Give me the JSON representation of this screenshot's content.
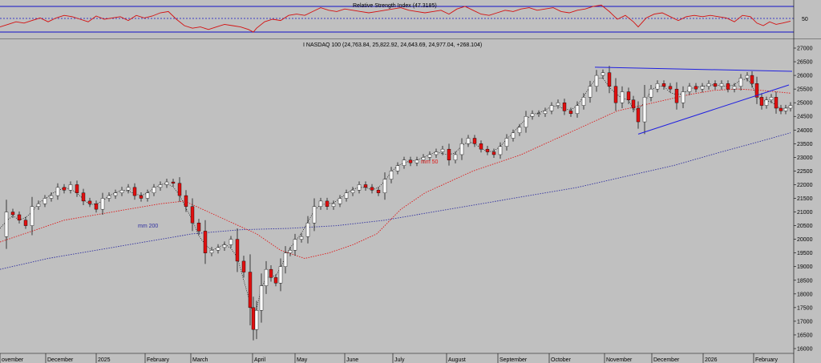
{
  "rsi": {
    "title": "Relative Strength Index (47.3185)",
    "level_label": "50",
    "colors": {
      "line": "#d41010",
      "band": "#1010c8",
      "mid": "#1010c8"
    }
  },
  "main": {
    "title": "I NASDAQ 100 (24,763.84, 25,822.92, 24,643.69, 24,977.04, +268.104)",
    "ma50_label": "mm 50",
    "ma200_label": "mm 200",
    "colors": {
      "ma50": "#e01818",
      "ma200": "#3030a0",
      "trend": "#2020e0",
      "bull": "#ffffff",
      "bear": "#e01010",
      "wick": "#000000",
      "dotted": "#000000"
    }
  },
  "chart_data": {
    "type": "candlestick",
    "title": "I NASDAQ 100 (24,763.84, 25,822.92, 24,643.69, 24,977.04, +268.104)",
    "ylim": [
      16000,
      27000
    ],
    "yticks": [
      16000,
      16500,
      17000,
      17500,
      18000,
      18500,
      19000,
      19500,
      20000,
      20500,
      21000,
      21500,
      22000,
      22500,
      23000,
      23500,
      24000,
      24500,
      25000,
      25500,
      26000,
      26500,
      27000
    ],
    "xticks": [
      "ovember",
      "December",
      "2025",
      "February",
      "March",
      "April",
      "May",
      "June",
      "July",
      "August",
      "September",
      "October",
      "November",
      "December",
      "2026",
      "February"
    ],
    "close_path": [
      [
        0,
        20100
      ],
      [
        8,
        21000
      ],
      [
        16,
        20900
      ],
      [
        24,
        20700
      ],
      [
        32,
        20500
      ],
      [
        40,
        21200
      ],
      [
        48,
        21300
      ],
      [
        56,
        21500
      ],
      [
        64,
        21600
      ],
      [
        72,
        21900
      ],
      [
        80,
        21800
      ],
      [
        88,
        22000
      ],
      [
        96,
        21700
      ],
      [
        104,
        21400
      ],
      [
        112,
        21300
      ],
      [
        120,
        21100
      ],
      [
        128,
        21500
      ],
      [
        136,
        21600
      ],
      [
        144,
        21700
      ],
      [
        152,
        21800
      ],
      [
        160,
        21900
      ],
      [
        168,
        21600
      ],
      [
        176,
        21500
      ],
      [
        184,
        21700
      ],
      [
        192,
        21900
      ],
      [
        200,
        22000
      ],
      [
        208,
        22100
      ],
      [
        216,
        22050
      ],
      [
        224,
        21600
      ],
      [
        232,
        21200
      ],
      [
        240,
        20600
      ],
      [
        248,
        20300
      ],
      [
        256,
        19500
      ],
      [
        264,
        19600
      ],
      [
        272,
        19700
      ],
      [
        280,
        19800
      ],
      [
        288,
        20000
      ],
      [
        296,
        19200
      ],
      [
        304,
        18800
      ],
      [
        312,
        17500
      ],
      [
        316,
        16700
      ],
      [
        320,
        17400
      ],
      [
        326,
        18300
      ],
      [
        332,
        18900
      ],
      [
        338,
        18600
      ],
      [
        344,
        18400
      ],
      [
        350,
        19000
      ],
      [
        356,
        19500
      ],
      [
        362,
        19600
      ],
      [
        368,
        20000
      ],
      [
        376,
        20100
      ],
      [
        384,
        20600
      ],
      [
        392,
        21200
      ],
      [
        400,
        21400
      ],
      [
        408,
        21200
      ],
      [
        416,
        21300
      ],
      [
        424,
        21500
      ],
      [
        432,
        21700
      ],
      [
        440,
        21800
      ],
      [
        448,
        22000
      ],
      [
        456,
        21900
      ],
      [
        464,
        21800
      ],
      [
        472,
        21700
      ],
      [
        480,
        22200
      ],
      [
        488,
        22500
      ],
      [
        496,
        22700
      ],
      [
        504,
        22900
      ],
      [
        512,
        22800
      ],
      [
        520,
        22900
      ],
      [
        528,
        23000
      ],
      [
        536,
        23100
      ],
      [
        544,
        23200
      ],
      [
        552,
        23300
      ],
      [
        560,
        22900
      ],
      [
        568,
        23100
      ],
      [
        576,
        23500
      ],
      [
        584,
        23700
      ],
      [
        592,
        23500
      ],
      [
        600,
        23300
      ],
      [
        608,
        23200
      ],
      [
        616,
        23100
      ],
      [
        624,
        23400
      ],
      [
        632,
        23700
      ],
      [
        640,
        23900
      ],
      [
        648,
        24100
      ],
      [
        656,
        24500
      ],
      [
        664,
        24600
      ],
      [
        672,
        24600
      ],
      [
        680,
        24700
      ],
      [
        688,
        24900
      ],
      [
        696,
        25000
      ],
      [
        704,
        24700
      ],
      [
        712,
        24600
      ],
      [
        720,
        24900
      ],
      [
        728,
        25200
      ],
      [
        736,
        25600
      ],
      [
        744,
        26000
      ],
      [
        752,
        26100
      ],
      [
        760,
        25600
      ],
      [
        768,
        25000
      ],
      [
        776,
        25400
      ],
      [
        784,
        25100
      ],
      [
        790,
        24800
      ],
      [
        796,
        24300
      ],
      [
        804,
        25200
      ],
      [
        812,
        25500
      ],
      [
        820,
        25700
      ],
      [
        828,
        25600
      ],
      [
        836,
        25500
      ],
      [
        844,
        25000
      ],
      [
        852,
        25400
      ],
      [
        860,
        25600
      ],
      [
        868,
        25500
      ],
      [
        876,
        25600
      ],
      [
        884,
        25700
      ],
      [
        892,
        25600
      ],
      [
        900,
        25700
      ],
      [
        908,
        25500
      ],
      [
        916,
        25600
      ],
      [
        924,
        25900
      ],
      [
        932,
        26000
      ],
      [
        938,
        25700
      ],
      [
        944,
        25200
      ],
      [
        950,
        24900
      ],
      [
        956,
        25100
      ],
      [
        962,
        25200
      ],
      [
        968,
        24800
      ],
      [
        974,
        24700
      ],
      [
        980,
        24800
      ],
      [
        986,
        24900
      ]
    ],
    "ma50": [
      [
        0,
        19900
      ],
      [
        40,
        20300
      ],
      [
        80,
        20700
      ],
      [
        120,
        20900
      ],
      [
        160,
        21100
      ],
      [
        200,
        21300
      ],
      [
        230,
        21400
      ],
      [
        260,
        21000
      ],
      [
        290,
        20600
      ],
      [
        320,
        20200
      ],
      [
        350,
        19600
      ],
      [
        380,
        19300
      ],
      [
        410,
        19500
      ],
      [
        440,
        19800
      ],
      [
        470,
        20200
      ],
      [
        500,
        21100
      ],
      [
        530,
        21700
      ],
      [
        560,
        22100
      ],
      [
        590,
        22500
      ],
      [
        620,
        22800
      ],
      [
        650,
        23100
      ],
      [
        680,
        23500
      ],
      [
        710,
        23900
      ],
      [
        740,
        24300
      ],
      [
        770,
        24700
      ],
      [
        800,
        24900
      ],
      [
        830,
        25100
      ],
      [
        860,
        25300
      ],
      [
        890,
        25450
      ],
      [
        920,
        25500
      ],
      [
        950,
        25450
      ],
      [
        986,
        25350
      ]
    ],
    "ma200": [
      [
        0,
        18900
      ],
      [
        60,
        19300
      ],
      [
        120,
        19600
      ],
      [
        180,
        19900
      ],
      [
        240,
        20200
      ],
      [
        300,
        20350
      ],
      [
        360,
        20400
      ],
      [
        420,
        20500
      ],
      [
        480,
        20700
      ],
      [
        540,
        21000
      ],
      [
        600,
        21300
      ],
      [
        660,
        21600
      ],
      [
        720,
        21900
      ],
      [
        780,
        22300
      ],
      [
        840,
        22700
      ],
      [
        900,
        23200
      ],
      [
        950,
        23600
      ],
      [
        986,
        23900
      ]
    ],
    "trendlines": [
      {
        "from": [
          742,
          26300
        ],
        "to": [
          988,
          26150
        ]
      },
      {
        "from": [
          796,
          23850
        ],
        "to": [
          984,
          25650
        ]
      }
    ],
    "rsi": [
      [
        0,
        38
      ],
      [
        10,
        42
      ],
      [
        20,
        46
      ],
      [
        30,
        44
      ],
      [
        40,
        48
      ],
      [
        50,
        52
      ],
      [
        60,
        46
      ],
      [
        70,
        52
      ],
      [
        80,
        56
      ],
      [
        90,
        54
      ],
      [
        100,
        50
      ],
      [
        110,
        46
      ],
      [
        120,
        55
      ],
      [
        130,
        50
      ],
      [
        140,
        52
      ],
      [
        150,
        54
      ],
      [
        160,
        48
      ],
      [
        170,
        56
      ],
      [
        180,
        52
      ],
      [
        190,
        55
      ],
      [
        200,
        60
      ],
      [
        210,
        62
      ],
      [
        220,
        50
      ],
      [
        230,
        40
      ],
      [
        240,
        36
      ],
      [
        250,
        38
      ],
      [
        260,
        34
      ],
      [
        270,
        38
      ],
      [
        280,
        42
      ],
      [
        290,
        40
      ],
      [
        300,
        38
      ],
      [
        310,
        34
      ],
      [
        316,
        30
      ],
      [
        320,
        36
      ],
      [
        330,
        46
      ],
      [
        340,
        50
      ],
      [
        350,
        48
      ],
      [
        360,
        56
      ],
      [
        370,
        58
      ],
      [
        380,
        56
      ],
      [
        390,
        62
      ],
      [
        400,
        68
      ],
      [
        410,
        64
      ],
      [
        420,
        62
      ],
      [
        430,
        66
      ],
      [
        440,
        64
      ],
      [
        450,
        62
      ],
      [
        460,
        60
      ],
      [
        470,
        62
      ],
      [
        480,
        64
      ],
      [
        490,
        66
      ],
      [
        500,
        68
      ],
      [
        510,
        64
      ],
      [
        520,
        62
      ],
      [
        530,
        60
      ],
      [
        540,
        62
      ],
      [
        550,
        64
      ],
      [
        560,
        58
      ],
      [
        570,
        66
      ],
      [
        580,
        70
      ],
      [
        590,
        64
      ],
      [
        600,
        58
      ],
      [
        610,
        56
      ],
      [
        620,
        60
      ],
      [
        630,
        64
      ],
      [
        640,
        62
      ],
      [
        650,
        66
      ],
      [
        660,
        68
      ],
      [
        670,
        64
      ],
      [
        680,
        66
      ],
      [
        690,
        68
      ],
      [
        700,
        62
      ],
      [
        710,
        60
      ],
      [
        720,
        64
      ],
      [
        730,
        66
      ],
      [
        740,
        70
      ],
      [
        750,
        72
      ],
      [
        760,
        62
      ],
      [
        770,
        50
      ],
      [
        780,
        56
      ],
      [
        790,
        46
      ],
      [
        796,
        38
      ],
      [
        806,
        52
      ],
      [
        816,
        58
      ],
      [
        826,
        60
      ],
      [
        836,
        54
      ],
      [
        846,
        48
      ],
      [
        856,
        54
      ],
      [
        866,
        56
      ],
      [
        876,
        54
      ],
      [
        886,
        56
      ],
      [
        896,
        54
      ],
      [
        906,
        52
      ],
      [
        916,
        46
      ],
      [
        926,
        56
      ],
      [
        936,
        54
      ],
      [
        944,
        44
      ],
      [
        952,
        40
      ],
      [
        960,
        46
      ],
      [
        968,
        42
      ],
      [
        976,
        44
      ],
      [
        986,
        47
      ]
    ]
  }
}
